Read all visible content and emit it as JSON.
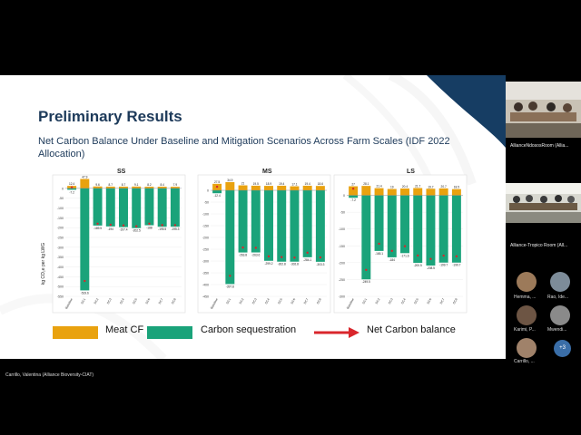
{
  "slide": {
    "title": "Preliminary Results",
    "subtitle": "Net Carbon Balance Under Baseline and Mitigation Scenarios Across Farm Scales (IDF 2022 Allocation)",
    "y_axis_label": "kg CO₂e per kg LWG",
    "legend": {
      "meat_cf": "Meat CF",
      "carbon_sequestration": "Carbon sequestration",
      "net_carbon_balance": "Net Carbon balance"
    },
    "colors": {
      "meat_cf": "#e9a20f",
      "sequestration": "#1aa37a",
      "net": "#d9262c",
      "title": "#1d3a5a"
    }
  },
  "chart_data": [
    {
      "type": "bar",
      "title": "SS",
      "categories": [
        "Baseline",
        "SC1",
        "SC2",
        "SC3",
        "SC4",
        "SC5",
        "SC6",
        "SC7",
        "SC8"
      ],
      "ylim": [
        -550,
        50
      ],
      "yticks": [
        "0",
        "-50",
        "-100",
        "-150",
        "-200",
        "-250",
        "-300",
        "-350",
        "-400",
        "-450",
        "-500",
        "-550"
      ],
      "series": [
        {
          "name": "Meat CF",
          "values": [
            12.4,
            47.9,
            9.6,
            8.7,
            8.7,
            9.1,
            8.2,
            8.4,
            7.9
          ],
          "labels": [
            "12.4",
            "47.9",
            "9.6",
            "8.7",
            "8.7",
            "9.1",
            "8.2",
            "8.4",
            "7.9"
          ]
        },
        {
          "name": "Carbon sequestration",
          "values": [
            -7.2,
            -519.6,
            -189.5,
            -194,
            -197.4,
            -202.5,
            -188,
            -195.5,
            -195.3
          ],
          "labels": [
            "-7.2",
            "-519.6",
            "-189.5",
            "-194",
            "-197.4",
            "-202.5",
            "-188",
            "-195.5",
            "-195.3"
          ]
        },
        {
          "name": "Net Carbon balance",
          "values": [
            5.2,
            -471.7,
            -179.9,
            -185.3,
            -188.7,
            -193.4,
            -179.8,
            -187.1,
            -187.4
          ]
        }
      ]
    },
    {
      "type": "bar",
      "title": "MS",
      "categories": [
        "Baseline",
        "SC1",
        "SC2",
        "SC3",
        "SC4",
        "SC5",
        "SC6",
        "SC7",
        "SC8"
      ],
      "ylim": [
        -450,
        50
      ],
      "yticks": [
        "0",
        "-50",
        "-100",
        "-150",
        "-200",
        "-250",
        "-300",
        "-350",
        "-400",
        "-450"
      ],
      "series": [
        {
          "name": "Meat CF",
          "values": [
            27.5,
            34.9,
            21,
            19.5,
            18.9,
            19.4,
            17.1,
            19.4,
            18.6
          ],
          "labels": [
            "27.5",
            "34.9",
            "21",
            "19.5",
            "18.9",
            "19.4",
            "17.1",
            "19.4",
            "18.6"
          ]
        },
        {
          "name": "Carbon sequestration",
          "values": [
            -12.4,
            -397.8,
            -263.8,
            -263.6,
            -299.2,
            -302.8,
            -302.8,
            -284.1,
            -303.3
          ],
          "labels": [
            "-12.4",
            "-397.8",
            "-263.8",
            "-263.6",
            "-299.2",
            "-302.8",
            "-302.8",
            "-284.1",
            "-303.3"
          ]
        },
        {
          "name": "Net Carbon balance",
          "values": [
            15.1,
            -362.9,
            -242.8,
            -244.1,
            -280.3,
            -283.4,
            -285.7,
            -264.7,
            -284.7
          ]
        }
      ]
    },
    {
      "type": "bar",
      "title": "LS",
      "categories": [
        "Baseline",
        "SC1",
        "SC2",
        "SC3",
        "SC4",
        "SC5",
        "SC6",
        "SC7",
        "SC8"
      ],
      "ylim": [
        -300,
        50
      ],
      "yticks": [
        "0",
        "-50",
        "-100",
        "-150",
        "-200",
        "-250",
        "-300"
      ],
      "series": [
        {
          "name": "Meat CF",
          "values": [
            27,
            28.1,
            21.4,
            19,
            20.4,
            21.7,
            19.7,
            20.7,
            18.5
          ],
          "labels": [
            "27",
            "28.1",
            "21.4",
            "19",
            "20.4",
            "21.7",
            "19.7",
            "20.7",
            "18.5"
          ]
        },
        {
          "name": "Carbon sequestration",
          "values": [
            -7.2,
            -249.5,
            -165.1,
            -184,
            -171.6,
            -200.5,
            -208.5,
            -199.7,
            -199.7
          ],
          "labels": [
            "-7.2",
            "-249.5",
            "-165.1",
            "-184",
            "-171.6",
            "-200.5",
            "-208.5",
            "-199.7",
            "-199.7"
          ]
        },
        {
          "name": "Net Carbon balance",
          "values": [
            19.8,
            -221.4,
            -143.7,
            -165,
            -151.2,
            -178.8,
            -188.8,
            -179,
            -181.2
          ]
        }
      ]
    }
  ],
  "presenter": {
    "name": "Carrillo, Valentina (Alliance Bioversity-CIAT)"
  },
  "participants": {
    "room1": "AllianceNdososRoom (Allia...",
    "room2": "Alliance-Tropico Room (All...",
    "people": [
      {
        "name": "Hemma, ..."
      },
      {
        "name": "Rao, Ide..."
      },
      {
        "name": "Karimi, P..."
      },
      {
        "name": "Mwendi..."
      },
      {
        "name": "Carrillo, ..."
      }
    ],
    "more": "+3"
  }
}
